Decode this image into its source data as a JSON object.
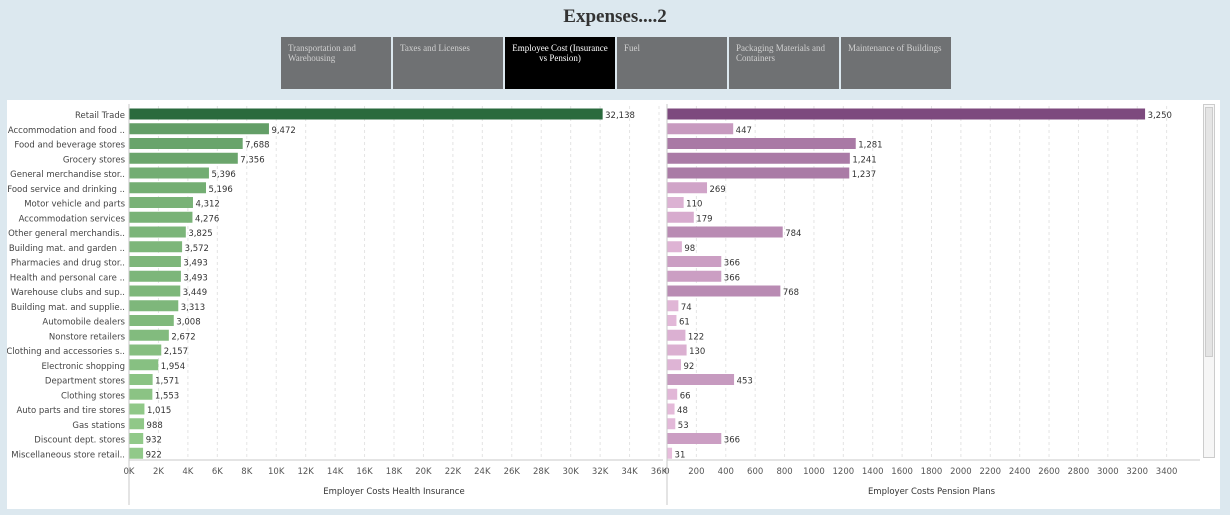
{
  "page_title": "Expenses....2",
  "tabs": [
    {
      "label": "Transportation and Warehousing",
      "active": false
    },
    {
      "label": "Taxes and Licenses",
      "active": false
    },
    {
      "label": "Employee Cost (Insurance vs Pension)",
      "active": true
    },
    {
      "label": "Fuel",
      "active": false
    },
    {
      "label": "Packaging Materials and Containers",
      "active": false
    },
    {
      "label": "Maintenance of Buildings",
      "active": false
    }
  ],
  "chart_data": [
    {
      "type": "bar",
      "orientation": "horizontal",
      "xlabel": "Employer Costs Health Insurance",
      "xlim": [
        0,
        36000
      ],
      "ticks": [
        "0K",
        "2K",
        "4K",
        "6K",
        "8K",
        "10K",
        "12K",
        "14K",
        "16K",
        "18K",
        "20K",
        "22K",
        "24K",
        "26K",
        "28K",
        "30K",
        "32K",
        "34K",
        "36K"
      ],
      "tick_values": [
        0,
        2000,
        4000,
        6000,
        8000,
        10000,
        12000,
        14000,
        16000,
        18000,
        20000,
        22000,
        24000,
        26000,
        28000,
        30000,
        32000,
        34000,
        36000
      ],
      "categories": [
        "Retail Trade",
        "Accommodation and food ..",
        "Food and beverage stores",
        "Grocery stores",
        "General merchandise stor..",
        "Food service and drinking ..",
        "Motor vehicle and parts",
        "Accommodation services",
        "Other general merchandis..",
        "Building mat. and garden ..",
        "Pharmacies and drug stor..",
        "Health and personal care ..",
        "Warehouse clubs and sup..",
        "Building mat. and supplie..",
        "Automobile dealers",
        "Nonstore retailers",
        "Clothing and accessories s..",
        "Electronic shopping",
        "Department stores",
        "Clothing stores",
        "Auto parts and tire stores",
        "Gas stations",
        "Discount dept. stores",
        "Miscellaneous store retail.."
      ],
      "values": [
        32138,
        9472,
        7688,
        7356,
        5396,
        5196,
        4312,
        4276,
        3825,
        3572,
        3493,
        3493,
        3449,
        3313,
        3008,
        2672,
        2157,
        1954,
        1571,
        1553,
        1015,
        988,
        932,
        922
      ],
      "labels": [
        "32,138",
        "9,472",
        "7,688",
        "7,356",
        "5,396",
        "5,196",
        "4,312",
        "4,276",
        "3,825",
        "3,572",
        "3,493",
        "3,493",
        "3,449",
        "3,313",
        "3,008",
        "2,672",
        "2,157",
        "1,954",
        "1,571",
        "1,553",
        "1,015",
        "988",
        "932",
        "922"
      ],
      "color_high": "#2a6a3d",
      "color_low": "#a6dc98"
    },
    {
      "type": "bar",
      "orientation": "horizontal",
      "xlabel": "Employer Costs Pension Plans",
      "xlim": [
        0,
        3600
      ],
      "ticks": [
        "0",
        "200",
        "400",
        "600",
        "800",
        "1000",
        "1200",
        "1400",
        "1600",
        "1800",
        "2000",
        "2200",
        "2400",
        "2600",
        "2800",
        "3000",
        "3200",
        "3400"
      ],
      "tick_values": [
        0,
        200,
        400,
        600,
        800,
        1000,
        1200,
        1400,
        1600,
        1800,
        2000,
        2200,
        2400,
        2600,
        2800,
        3000,
        3200,
        3400
      ],
      "values": [
        3250,
        447,
        1281,
        1241,
        1237,
        269,
        110,
        179,
        784,
        98,
        366,
        366,
        768,
        74,
        61,
        122,
        130,
        92,
        453,
        66,
        48,
        53,
        366,
        31
      ],
      "labels": [
        "3,250",
        "447",
        "1,281",
        "1,241",
        "1,237",
        "269",
        "110",
        "179",
        "784",
        "98",
        "366",
        "366",
        "768",
        "74",
        "61",
        "122",
        "130",
        "92",
        "453",
        "66",
        "48",
        "53",
        "366",
        "31"
      ],
      "color_high": "#7d4a7e",
      "color_low": "#f2c9e6"
    }
  ]
}
